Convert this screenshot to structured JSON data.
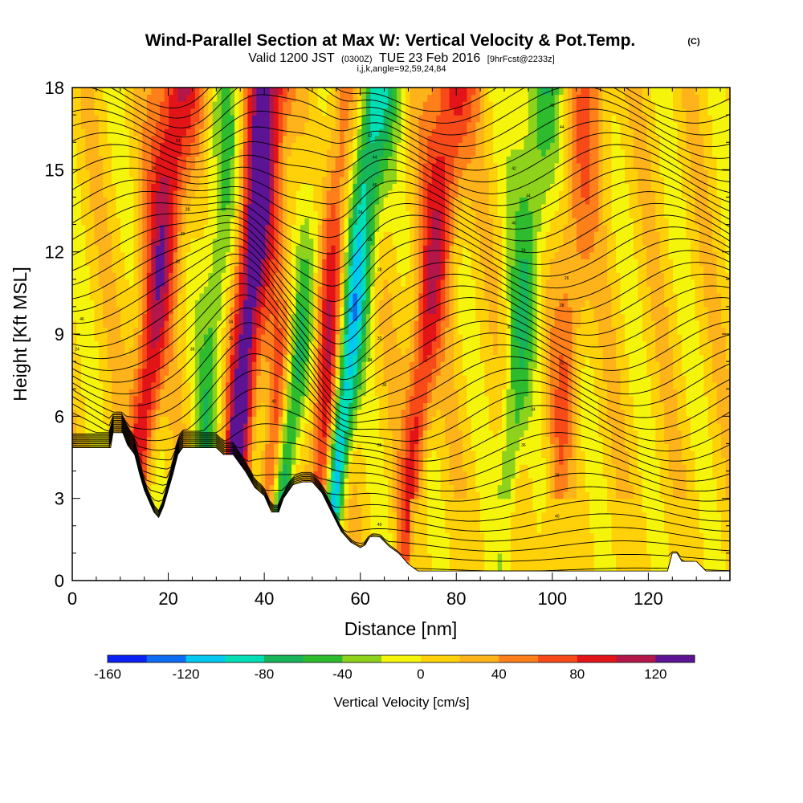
{
  "chart_data": {
    "type": "heatmap",
    "title": "Wind-Parallel Section at Max W: Vertical Velocity & Pot.Temp.",
    "title_mark": "(C)",
    "subtitle": {
      "part1": "Valid 1200 JST",
      "part2": "(0300Z)",
      "part3": "TUE 23 Feb 2016",
      "part4": "[9hrFcst@2233z]"
    },
    "subtitle2": "i,j,k,angle=92,59,24,84",
    "xlabel": "Distance [nm]",
    "ylabel": "Height [Kft MSL]",
    "xlim": [
      0,
      137
    ],
    "ylim": [
      0,
      18
    ],
    "x_ticks": [
      0,
      20,
      40,
      60,
      80,
      100,
      120
    ],
    "y_ticks": [
      0,
      3,
      6,
      9,
      12,
      15,
      18
    ],
    "colorbar": {
      "label": "Vertical Velocity [cm/s]",
      "range": [
        -160,
        140
      ],
      "tick_values": [
        -160,
        -120,
        -80,
        -40,
        0,
        40,
        80,
        120
      ],
      "tick_labels": [
        "-160",
        "-120",
        "-80",
        "-40",
        "0",
        "40",
        "80",
        "120"
      ],
      "colors": [
        "#0b22f4",
        "#0d6cf3",
        "#00c8f0",
        "#00deb5",
        "#18b45a",
        "#2ebc2e",
        "#8ed21c",
        "#f5f50c",
        "#ffd108",
        "#ffb31a",
        "#ff7f1a",
        "#f74a18",
        "#e31418",
        "#b3174a",
        "#5c1495"
      ]
    },
    "upward_cores": [
      {
        "x": 15,
        "amplitude": 100
      },
      {
        "x": 35,
        "amplitude": 140
      },
      {
        "x": 43,
        "amplitude": 100
      },
      {
        "x": 53,
        "amplitude": 120
      },
      {
        "x": 72,
        "amplitude": 85
      },
      {
        "x": 102,
        "amplitude": 45
      }
    ],
    "downward_cores": [
      {
        "x": 45,
        "amplitude": -120
      },
      {
        "x": 56,
        "amplitude": -150
      },
      {
        "x": 92,
        "amplitude": -60
      },
      {
        "x": 28,
        "amplitude": -55
      }
    ],
    "terrain": [
      [
        0,
        4.85
      ],
      [
        8,
        4.85
      ],
      [
        8.5,
        5.4
      ],
      [
        10.5,
        5.4
      ],
      [
        11.5,
        4.95
      ],
      [
        13,
        4.6
      ],
      [
        14,
        3.9
      ],
      [
        15,
        3.3
      ],
      [
        16,
        2.9
      ],
      [
        17,
        2.5
      ],
      [
        18,
        2.3
      ],
      [
        19,
        2.7
      ],
      [
        20,
        3.3
      ],
      [
        21,
        3.9
      ],
      [
        22,
        4.6
      ],
      [
        23,
        4.85
      ],
      [
        30,
        4.85
      ],
      [
        31.5,
        4.6
      ],
      [
        33.5,
        4.6
      ],
      [
        36,
        4.0
      ],
      [
        38,
        3.4
      ],
      [
        40,
        3.1
      ],
      [
        41.5,
        2.5
      ],
      [
        43,
        2.5
      ],
      [
        44,
        3.0
      ],
      [
        46,
        3.5
      ],
      [
        48,
        3.6
      ],
      [
        50,
        3.6
      ],
      [
        52,
        3.2
      ],
      [
        54,
        2.5
      ],
      [
        56,
        1.8
      ],
      [
        58,
        1.4
      ],
      [
        60,
        1.2
      ],
      [
        61,
        1.3
      ],
      [
        62,
        1.6
      ],
      [
        64,
        1.6
      ],
      [
        66,
        1.25
      ],
      [
        68,
        1.0
      ],
      [
        70,
        0.6
      ],
      [
        72,
        0.35
      ],
      [
        124,
        0.35
      ],
      [
        125,
        1.0
      ],
      [
        126,
        1.0
      ],
      [
        127,
        0.7
      ],
      [
        130,
        0.7
      ],
      [
        132,
        0.35
      ],
      [
        137,
        0.35
      ]
    ],
    "theta_contour_labels": [
      "24",
      "26",
      "28",
      "30",
      "32",
      "34",
      "36",
      "38",
      "40",
      "42",
      "44",
      "46"
    ]
  }
}
